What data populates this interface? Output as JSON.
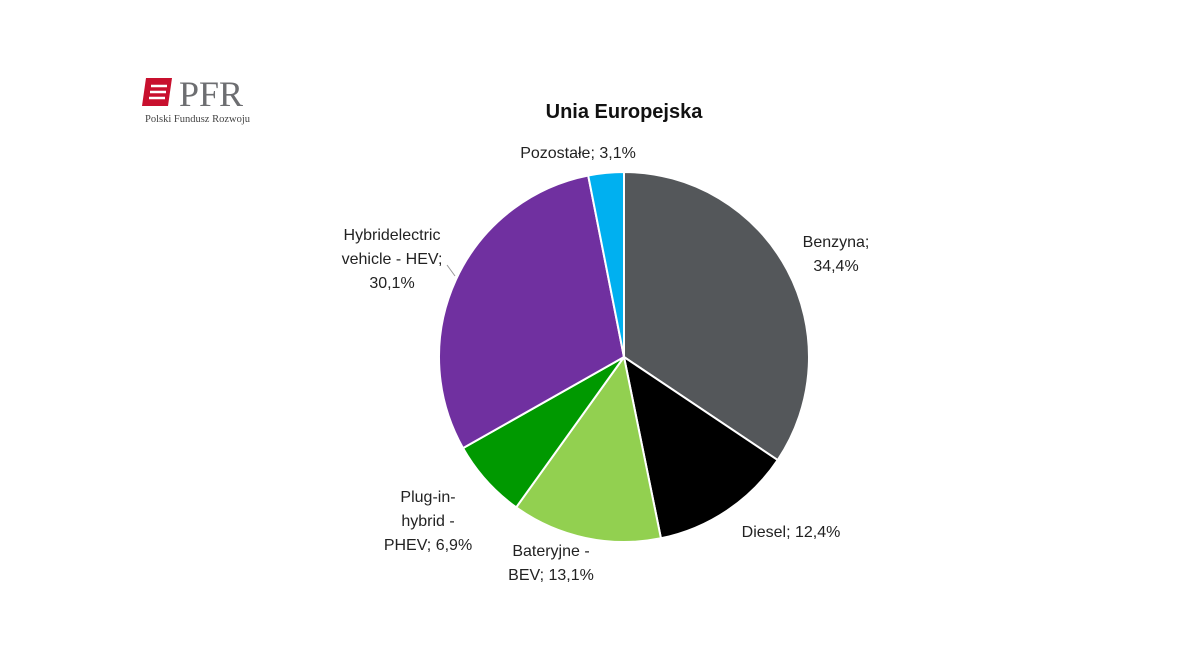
{
  "logo": {
    "name": "PFR",
    "tagline": "Polski Fundusz Rozwoju"
  },
  "chart_data": {
    "type": "pie",
    "title": "Unia Europejska",
    "values": [
      34.4,
      12.4,
      13.1,
      6.9,
      30.1,
      3.1
    ],
    "value_labels": [
      "Benzyna; 34,4%",
      "Diesel; 12,4%",
      "Bateryjne - BEV; 13,1%",
      "Plug-in-hybrid - PHEV; 6,9%",
      "Hybridelectric vehicle - HEV; 30,1%",
      "Pozostałe; 3,1%"
    ],
    "colors": [
      "#54575a",
      "#000000",
      "#92d050",
      "#009900",
      "#7030a0",
      "#00b0f0"
    ]
  }
}
